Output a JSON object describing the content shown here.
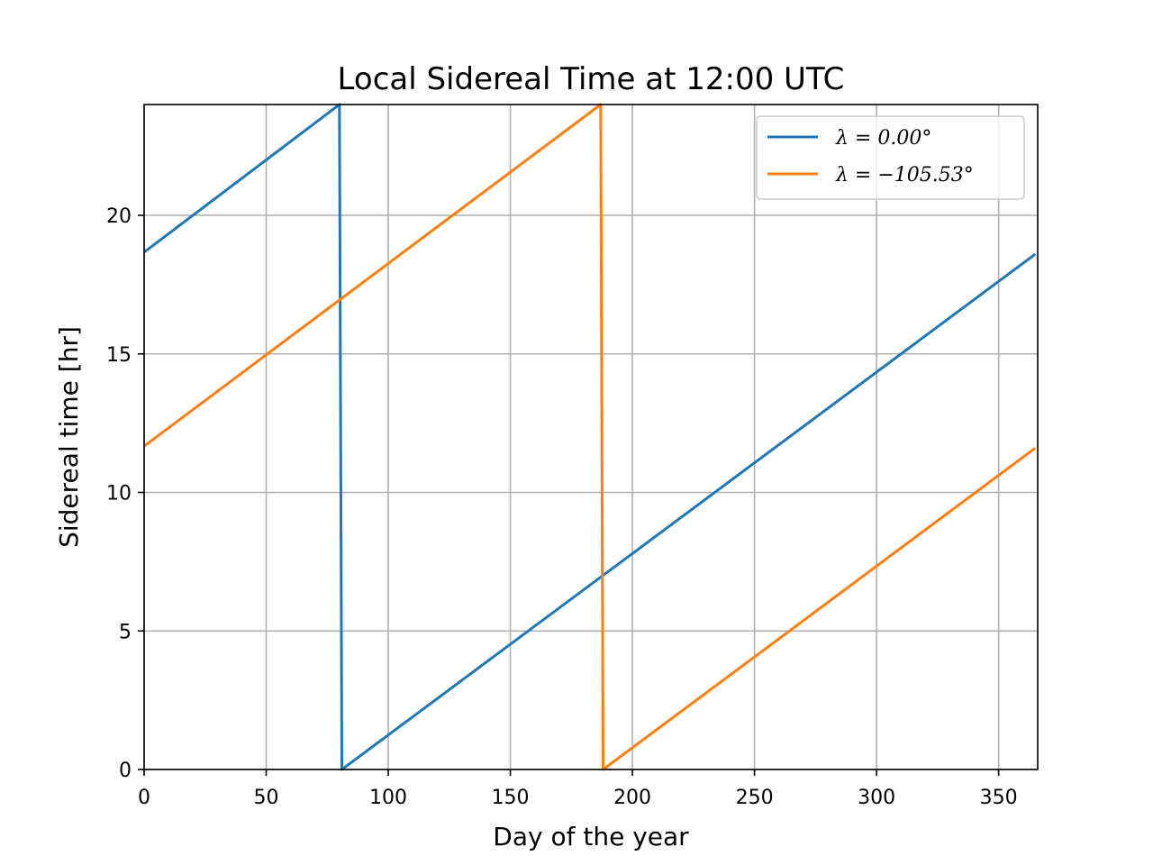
{
  "chart_data": {
    "type": "line",
    "title": "Local Sidereal Time at 12:00 UTC",
    "xlabel": "Day of the year",
    "ylabel": "Sidereal time [hr]",
    "xlim": [
      0,
      366
    ],
    "ylim": [
      0,
      24
    ],
    "xticks": [
      0,
      50,
      100,
      150,
      200,
      250,
      300,
      350
    ],
    "yticks": [
      0,
      5,
      10,
      15,
      20
    ],
    "grid": true,
    "legend_position": "top-right",
    "series": [
      {
        "name": "λ = 0.00°",
        "color": "#1f77b4",
        "x": [
          0,
          80,
          81,
          365
        ],
        "y": [
          18.67,
          24.0,
          0.0,
          18.6
        ]
      },
      {
        "name": "λ = −105.53°",
        "color": "#ff7f0e",
        "x": [
          0,
          187,
          188,
          365
        ],
        "y": [
          11.67,
          24.0,
          0.0,
          11.6
        ]
      }
    ]
  }
}
